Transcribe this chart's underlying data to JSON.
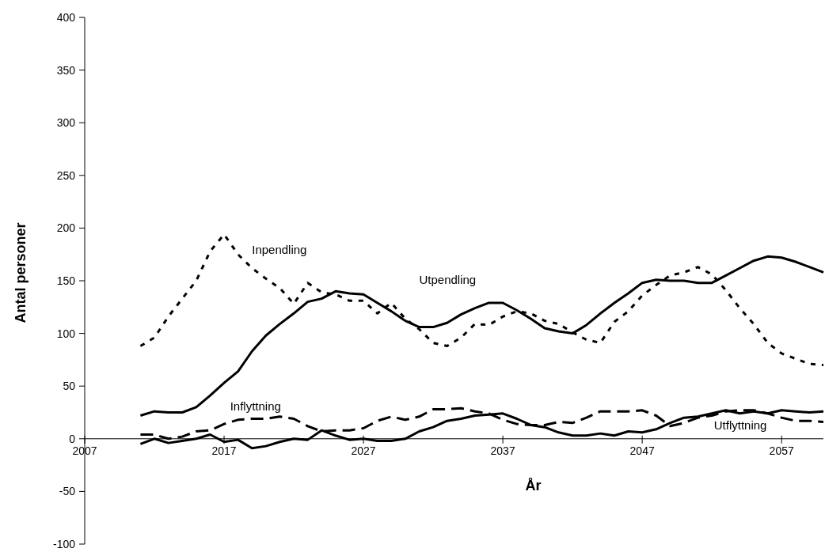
{
  "chart_data": {
    "type": "line",
    "xlabel": "År",
    "ylabel": "Antal personer",
    "x": [
      2011,
      2012,
      2013,
      2014,
      2015,
      2016,
      2017,
      2018,
      2019,
      2020,
      2021,
      2022,
      2023,
      2024,
      2025,
      2026,
      2027,
      2028,
      2029,
      2030,
      2031,
      2032,
      2033,
      2034,
      2035,
      2036,
      2037,
      2038,
      2039,
      2040,
      2041,
      2042,
      2043,
      2044,
      2045,
      2046,
      2047,
      2048,
      2049,
      2050,
      2051,
      2052,
      2053,
      2054,
      2055,
      2056,
      2057,
      2058,
      2059,
      2060
    ],
    "series": [
      {
        "name": "Inpendling",
        "color": "#000000",
        "line_style": "dotted",
        "values": [
          88,
          96,
          116,
          133,
          150,
          178,
          194,
          175,
          162,
          152,
          143,
          128,
          148,
          139,
          137,
          131,
          131,
          119,
          129,
          114,
          104,
          91,
          88,
          96,
          109,
          108,
          116,
          121,
          119,
          112,
          109,
          101,
          94,
          91,
          111,
          121,
          136,
          146,
          155,
          158,
          163,
          156,
          141,
          124,
          109,
          91,
          81,
          76,
          71,
          70
        ]
      },
      {
        "name": "Utpendling",
        "color": "#000000",
        "line_style": "solid",
        "values": [
          22,
          26,
          25,
          25,
          30,
          41,
          53,
          64,
          83,
          98,
          109,
          119,
          130,
          133,
          140,
          138,
          137,
          129,
          121,
          112,
          106,
          106,
          110,
          118,
          124,
          129,
          129,
          122,
          114,
          105,
          102,
          100,
          108,
          119,
          129,
          138,
          148,
          151,
          150,
          150,
          148,
          148,
          155,
          162,
          169,
          173,
          172,
          168,
          163,
          158
        ]
      },
      {
        "name": "Inflyttning",
        "color": "#000000",
        "line_style": "dashed",
        "values": [
          4,
          4,
          0,
          2,
          7,
          8,
          14,
          18,
          19,
          19,
          21,
          19,
          12,
          7,
          8,
          8,
          10,
          17,
          21,
          18,
          21,
          28,
          28,
          29,
          26,
          24,
          18,
          14,
          13,
          13,
          16,
          15,
          20,
          26,
          26,
          26,
          27,
          22,
          12,
          15,
          20,
          22,
          26,
          27,
          27,
          24,
          20,
          17,
          17,
          16
        ]
      },
      {
        "name": "Utflyttning",
        "color": "#000000",
        "line_style": "solid",
        "values": [
          -5,
          0,
          -4,
          -2,
          0,
          4,
          -3,
          -1,
          -9,
          -7,
          -3,
          0,
          -1,
          8,
          3,
          -1,
          0,
          -2,
          -2,
          0,
          7,
          11,
          17,
          19,
          22,
          23,
          24,
          19,
          13,
          11,
          6,
          3,
          3,
          5,
          3,
          7,
          6,
          9,
          15,
          20,
          21,
          24,
          27,
          24,
          26,
          24,
          27,
          26,
          25,
          26
        ]
      }
    ],
    "xlim": [
      2007,
      2060
    ],
    "xticks": [
      2007,
      2017,
      2027,
      2037,
      2047,
      2057
    ],
    "ylim": [
      -100,
      400
    ],
    "yticks": [
      -100,
      -50,
      0,
      50,
      100,
      150,
      200,
      250,
      300,
      350,
      400
    ],
    "grid": false,
    "legend": false,
    "marker": "none"
  }
}
